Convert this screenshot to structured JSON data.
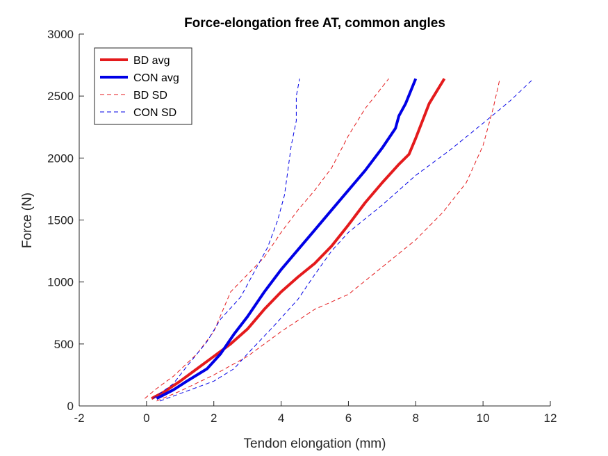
{
  "chart_data": {
    "type": "line",
    "title": "Force-elongation free AT, common angles",
    "xlabel": "Tendon elongation (mm)",
    "ylabel": "Force (N)",
    "xlim": [
      -2,
      12
    ],
    "ylim": [
      0,
      3000
    ],
    "xticks": [
      -2,
      0,
      2,
      4,
      6,
      8,
      10,
      12
    ],
    "yticks": [
      0,
      500,
      1000,
      1500,
      2000,
      2500,
      3000
    ],
    "xtick_labels": [
      "-2",
      "0",
      "2",
      "4",
      "6",
      "8",
      "10",
      "12"
    ],
    "ytick_labels": [
      "0",
      "500",
      "1000",
      "1500",
      "2000",
      "2500",
      "3000"
    ],
    "grid": false,
    "legend_position": "top-left",
    "series": [
      {
        "name": "BD avg",
        "color": "#e41a1c",
        "style": "solid",
        "width": "thick",
        "points": [
          [
            0.15,
            60
          ],
          [
            0.5,
            110
          ],
          [
            1.0,
            200
          ],
          [
            1.5,
            300
          ],
          [
            2.0,
            400
          ],
          [
            2.5,
            500
          ],
          [
            3.0,
            620
          ],
          [
            3.5,
            780
          ],
          [
            4.0,
            920
          ],
          [
            4.5,
            1040
          ],
          [
            5.0,
            1150
          ],
          [
            5.5,
            1290
          ],
          [
            6.0,
            1460
          ],
          [
            6.5,
            1640
          ],
          [
            7.0,
            1800
          ],
          [
            7.5,
            1950
          ],
          [
            7.8,
            2030
          ],
          [
            8.0,
            2160
          ],
          [
            8.4,
            2440
          ],
          [
            8.85,
            2640
          ]
        ]
      },
      {
        "name": "CON avg",
        "color": "#0000e6",
        "style": "solid",
        "width": "thick",
        "points": [
          [
            0.3,
            60
          ],
          [
            0.8,
            130
          ],
          [
            1.2,
            200
          ],
          [
            1.8,
            300
          ],
          [
            2.2,
            420
          ],
          [
            2.6,
            580
          ],
          [
            3.0,
            720
          ],
          [
            3.5,
            920
          ],
          [
            4.0,
            1100
          ],
          [
            4.5,
            1260
          ],
          [
            5.0,
            1420
          ],
          [
            5.5,
            1580
          ],
          [
            6.0,
            1740
          ],
          [
            6.5,
            1900
          ],
          [
            7.0,
            2080
          ],
          [
            7.4,
            2240
          ],
          [
            7.5,
            2340
          ],
          [
            7.7,
            2440
          ],
          [
            8.0,
            2640
          ]
        ]
      },
      {
        "name": "BD SD",
        "color": "#e41a1c",
        "style": "dashed",
        "width": "thin",
        "points": [
          [
            -0.05,
            60
          ],
          [
            0.3,
            140
          ],
          [
            0.8,
            240
          ],
          [
            1.5,
            420
          ],
          [
            2.0,
            600
          ],
          [
            2.5,
            920
          ],
          [
            3.0,
            1060
          ],
          [
            3.5,
            1200
          ],
          [
            4.0,
            1400
          ],
          [
            4.5,
            1580
          ],
          [
            5.0,
            1740
          ],
          [
            5.5,
            1920
          ],
          [
            6.0,
            2180
          ],
          [
            6.5,
            2400
          ],
          [
            7.2,
            2640
          ]
        ]
      },
      {
        "name": "CON SD",
        "color": "#0000e6",
        "style": "dashed",
        "width": "thin",
        "points": [
          [
            0.2,
            60
          ],
          [
            0.8,
            180
          ],
          [
            1.2,
            320
          ],
          [
            1.8,
            520
          ],
          [
            2.2,
            700
          ],
          [
            2.8,
            880
          ],
          [
            3.2,
            1080
          ],
          [
            3.6,
            1280
          ],
          [
            3.9,
            1500
          ],
          [
            4.1,
            1700
          ],
          [
            4.2,
            1900
          ],
          [
            4.3,
            2100
          ],
          [
            4.45,
            2300
          ],
          [
            4.45,
            2500
          ],
          [
            4.55,
            2640
          ]
        ]
      },
      {
        "name": "",
        "color": "#e41a1c",
        "style": "dashed",
        "width": "thin",
        "points": [
          [
            0.3,
            40
          ],
          [
            1.0,
            120
          ],
          [
            2.0,
            250
          ],
          [
            3.0,
            400
          ],
          [
            4.0,
            600
          ],
          [
            5.0,
            780
          ],
          [
            6.0,
            900
          ],
          [
            7.0,
            1120
          ],
          [
            8.0,
            1340
          ],
          [
            8.8,
            1560
          ],
          [
            9.5,
            1800
          ],
          [
            10.0,
            2100
          ],
          [
            10.3,
            2400
          ],
          [
            10.5,
            2640
          ]
        ]
      },
      {
        "name": "",
        "color": "#0000e6",
        "style": "dashed",
        "width": "thin",
        "points": [
          [
            0.4,
            40
          ],
          [
            1.0,
            100
          ],
          [
            2.0,
            200
          ],
          [
            2.6,
            300
          ],
          [
            3.0,
            420
          ],
          [
            3.8,
            650
          ],
          [
            4.5,
            860
          ],
          [
            5.0,
            1060
          ],
          [
            5.5,
            1250
          ],
          [
            6.0,
            1400
          ],
          [
            7.0,
            1620
          ],
          [
            8.0,
            1860
          ],
          [
            9.0,
            2060
          ],
          [
            10.0,
            2280
          ],
          [
            10.8,
            2460
          ],
          [
            11.5,
            2640
          ]
        ]
      }
    ]
  }
}
